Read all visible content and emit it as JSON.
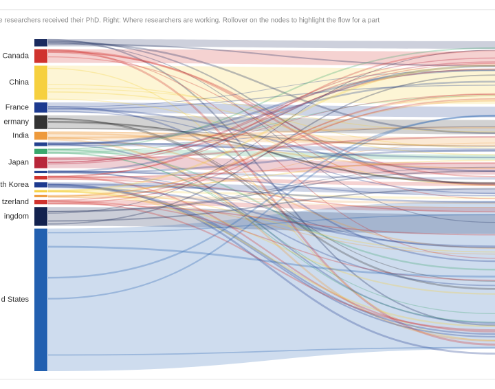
{
  "chart_data": {
    "type": "sankey",
    "subtitle": "e researchers received their PhD. Right: Where researchers are working. Rollover on the nodes to highlight the flow for a part",
    "nodes": [
      {
        "name": null,
        "color": "#1a2a5e",
        "value": 10
      },
      {
        "name": "Canada",
        "color": "#d0332e",
        "value": 19
      },
      {
        "name": "China",
        "color": "#f6d03f",
        "value": 47
      },
      {
        "name": "France",
        "color": "#1d3a8f",
        "value": 14
      },
      {
        "name": "ermany",
        "color": "#333333",
        "value": 19
      },
      {
        "name": "India",
        "color": "#ee9a3c",
        "value": 11
      },
      {
        "name": null,
        "color": "#23418f",
        "value": 5
      },
      {
        "name": null,
        "color": "#3aa76d",
        "value": 7
      },
      {
        "name": "Japan",
        "color": "#b8263a",
        "value": 16
      },
      {
        "name": null,
        "color": "#23418f",
        "value": 3
      },
      {
        "name": null,
        "color": "#d0332e",
        "value": 5
      },
      {
        "name": "th Korea",
        "color": "#1d3a8f",
        "value": 7
      },
      {
        "name": null,
        "color": "#f6d03f",
        "value": 3
      },
      {
        "name": null,
        "color": "#ee9a3c",
        "value": 3
      },
      {
        "name": "tzerland",
        "color": "#d0332e",
        "value": 6
      },
      {
        "name": "ingdom",
        "color": "#13224f",
        "value": 26
      },
      {
        "name": "d States",
        "color": "#2260b0",
        "value": 197
      }
    ]
  }
}
